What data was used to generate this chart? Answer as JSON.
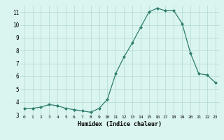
{
  "x": [
    0,
    1,
    2,
    3,
    4,
    5,
    6,
    7,
    8,
    9,
    10,
    11,
    12,
    13,
    14,
    15,
    16,
    17,
    18,
    19,
    20,
    21,
    22,
    23
  ],
  "y": [
    3.5,
    3.5,
    3.6,
    3.8,
    3.7,
    3.5,
    3.4,
    3.3,
    3.2,
    3.5,
    4.2,
    6.2,
    7.5,
    8.6,
    9.8,
    11.0,
    11.3,
    11.1,
    11.1,
    10.1,
    7.8,
    6.2,
    6.1,
    5.5
  ],
  "xlabel": "Humidex (Indice chaleur)",
  "ylim": [
    3,
    11.5
  ],
  "xlim": [
    -0.5,
    23.5
  ],
  "yticks": [
    3,
    4,
    5,
    6,
    7,
    8,
    9,
    10,
    11
  ],
  "xticks": [
    0,
    1,
    2,
    3,
    4,
    5,
    6,
    7,
    8,
    9,
    10,
    11,
    12,
    13,
    14,
    15,
    16,
    17,
    18,
    19,
    20,
    21,
    22,
    23
  ],
  "line_color": "#2e7d6e",
  "marker": "D",
  "marker_size": 2.0,
  "bg_color": "#daf5ef",
  "grid_color": "#b8ddd7",
  "axis_bg": "#daf5ef"
}
